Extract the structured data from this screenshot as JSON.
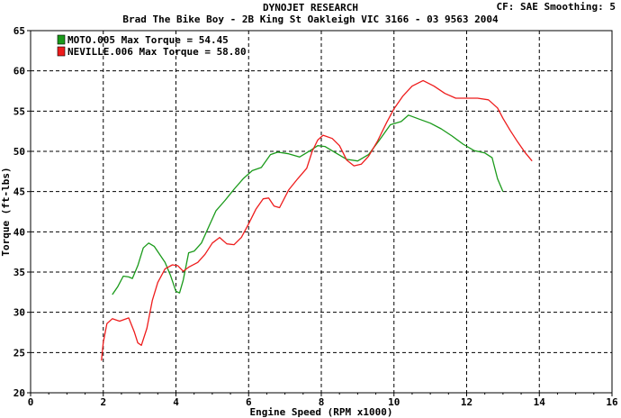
{
  "header": {
    "title": "DYNOJET RESEARCH",
    "subtitle": "Brad The Bike Boy - 2B King St Oakleigh VIC 3166 - 03 9563 2004",
    "corner": "CF: SAE  Smoothing: 5"
  },
  "chart_data": {
    "type": "line",
    "title": "DYNOJET RESEARCH",
    "subtitle": "Brad The Bike Boy - 2B King St Oakleigh VIC 3166 - 03 9563 2004",
    "xlabel": "Engine Speed (RPM x1000)",
    "ylabel": "Torque (ft-lbs)",
    "xlim": [
      0,
      16
    ],
    "ylim": [
      20,
      65
    ],
    "xticks": [
      0,
      2,
      4,
      6,
      8,
      10,
      12,
      14,
      16
    ],
    "yticks": [
      20,
      25,
      30,
      35,
      40,
      45,
      50,
      55,
      60,
      65
    ],
    "grid": true,
    "grid_style": "dashed",
    "legend_position": "top-left",
    "series": [
      {
        "name": "MOTO.005",
        "legend": "MOTO.005 Max Torque = 54.45",
        "color": "#1a9a1a",
        "points": [
          [
            2.25,
            32.2
          ],
          [
            2.4,
            33.2
          ],
          [
            2.55,
            34.5
          ],
          [
            2.7,
            34.4
          ],
          [
            2.8,
            34.2
          ],
          [
            2.95,
            35.8
          ],
          [
            3.1,
            38.0
          ],
          [
            3.25,
            38.6
          ],
          [
            3.4,
            38.2
          ],
          [
            3.55,
            37.2
          ],
          [
            3.7,
            36.2
          ],
          [
            3.85,
            34.6
          ],
          [
            4.0,
            32.6
          ],
          [
            4.1,
            32.4
          ],
          [
            4.2,
            34.0
          ],
          [
            4.35,
            37.4
          ],
          [
            4.5,
            37.6
          ],
          [
            4.7,
            38.6
          ],
          [
            4.9,
            40.6
          ],
          [
            5.1,
            42.6
          ],
          [
            5.35,
            43.9
          ],
          [
            5.6,
            45.3
          ],
          [
            5.85,
            46.6
          ],
          [
            6.1,
            47.6
          ],
          [
            6.35,
            48.0
          ],
          [
            6.6,
            49.6
          ],
          [
            6.8,
            49.9
          ],
          [
            7.1,
            49.7
          ],
          [
            7.4,
            49.3
          ],
          [
            7.7,
            50.1
          ],
          [
            7.9,
            50.7
          ],
          [
            8.1,
            50.6
          ],
          [
            8.4,
            49.8
          ],
          [
            8.7,
            49.0
          ],
          [
            9.0,
            48.8
          ],
          [
            9.3,
            49.6
          ],
          [
            9.6,
            51.4
          ],
          [
            9.9,
            53.3
          ],
          [
            10.2,
            53.7
          ],
          [
            10.4,
            54.5
          ],
          [
            10.7,
            54.0
          ],
          [
            11.0,
            53.5
          ],
          [
            11.3,
            52.8
          ],
          [
            11.6,
            51.9
          ],
          [
            11.9,
            50.9
          ],
          [
            12.2,
            50.1
          ],
          [
            12.5,
            49.8
          ],
          [
            12.7,
            49.2
          ],
          [
            12.85,
            46.6
          ],
          [
            13.0,
            45.0
          ]
        ]
      },
      {
        "name": "NEVILLE.006",
        "legend": "NEVILLE.006 Max Torque = 58.80",
        "color": "#ee1c1c",
        "points": [
          [
            1.95,
            24.0
          ],
          [
            2.0,
            26.3
          ],
          [
            2.1,
            28.6
          ],
          [
            2.25,
            29.2
          ],
          [
            2.45,
            28.9
          ],
          [
            2.7,
            29.3
          ],
          [
            2.85,
            27.6
          ],
          [
            2.95,
            26.2
          ],
          [
            3.05,
            25.9
          ],
          [
            3.2,
            28.0
          ],
          [
            3.35,
            31.5
          ],
          [
            3.5,
            33.7
          ],
          [
            3.7,
            35.4
          ],
          [
            3.9,
            35.9
          ],
          [
            4.05,
            35.8
          ],
          [
            4.2,
            35.1
          ],
          [
            4.35,
            35.6
          ],
          [
            4.6,
            36.2
          ],
          [
            4.8,
            37.2
          ],
          [
            5.0,
            38.6
          ],
          [
            5.2,
            39.3
          ],
          [
            5.4,
            38.5
          ],
          [
            5.6,
            38.4
          ],
          [
            5.8,
            39.3
          ],
          [
            6.0,
            41.0
          ],
          [
            6.2,
            42.8
          ],
          [
            6.4,
            44.1
          ],
          [
            6.55,
            44.2
          ],
          [
            6.7,
            43.2
          ],
          [
            6.85,
            43.0
          ],
          [
            7.1,
            45.2
          ],
          [
            7.35,
            46.6
          ],
          [
            7.6,
            47.9
          ],
          [
            7.75,
            50.0
          ],
          [
            7.9,
            51.4
          ],
          [
            8.05,
            52.0
          ],
          [
            8.3,
            51.6
          ],
          [
            8.5,
            50.7
          ],
          [
            8.7,
            48.9
          ],
          [
            8.9,
            48.2
          ],
          [
            9.1,
            48.4
          ],
          [
            9.3,
            49.4
          ],
          [
            9.55,
            51.3
          ],
          [
            9.8,
            53.6
          ],
          [
            10.0,
            55.3
          ],
          [
            10.25,
            56.9
          ],
          [
            10.5,
            58.1
          ],
          [
            10.8,
            58.8
          ],
          [
            11.1,
            58.1
          ],
          [
            11.4,
            57.2
          ],
          [
            11.7,
            56.6
          ],
          [
            12.0,
            56.6
          ],
          [
            12.3,
            56.6
          ],
          [
            12.6,
            56.4
          ],
          [
            12.85,
            55.4
          ],
          [
            13.0,
            54.1
          ],
          [
            13.2,
            52.6
          ],
          [
            13.4,
            51.2
          ],
          [
            13.6,
            49.9
          ],
          [
            13.8,
            48.8
          ]
        ]
      }
    ]
  }
}
